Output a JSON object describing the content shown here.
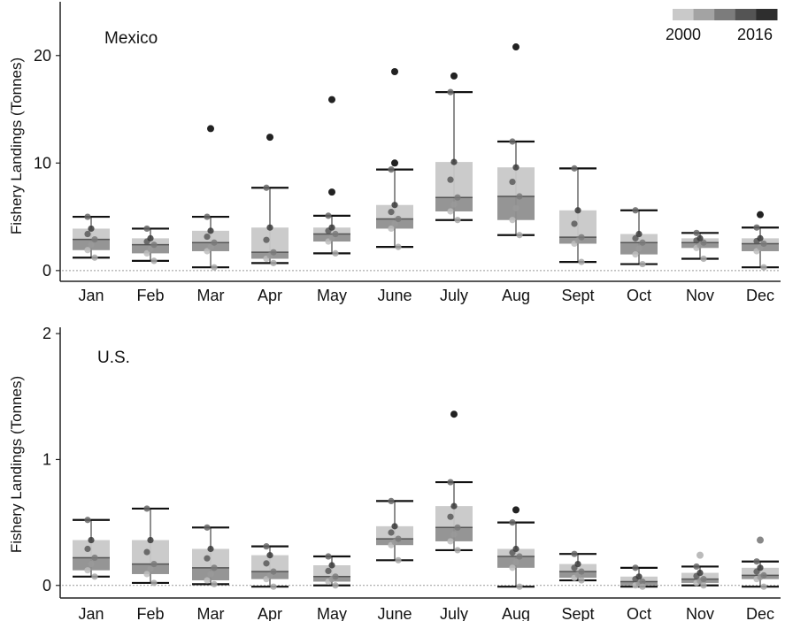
{
  "legend": {
    "start_label": "2000",
    "end_label": "2016",
    "colors": [
      "#c9c9c9",
      "#a3a3a3",
      "#7c7c7c",
      "#545454",
      "#2e2e2e"
    ]
  },
  "chart_data": [
    {
      "type": "box",
      "panel_label": "Mexico",
      "ylabel": "Fishery Landings (Tonnes)",
      "ylim": [
        -1,
        25
      ],
      "yticks": [
        0,
        10,
        20
      ],
      "categories": [
        "Jan",
        "Feb",
        "Mar",
        "Apr",
        "May",
        "June",
        "July",
        "Aug",
        "Sept",
        "Oct",
        "Nov",
        "Dec"
      ],
      "boxes": [
        {
          "whisker_low": 1.2,
          "q1": 1.9,
          "median": 2.9,
          "q3": 3.9,
          "whisker_high": 5.0,
          "upper": 3.9,
          "lower": 1.9
        },
        {
          "whisker_low": 0.9,
          "q1": 1.6,
          "median": 2.4,
          "q3": 3.0,
          "whisker_high": 3.9,
          "upper": 3.0,
          "lower": 1.6
        },
        {
          "whisker_low": 0.3,
          "q1": 1.8,
          "median": 2.6,
          "q3": 3.7,
          "whisker_high": 5.0,
          "upper": 3.7,
          "lower": 1.8
        },
        {
          "whisker_low": 0.7,
          "q1": 1.1,
          "median": 1.7,
          "q3": 4.0,
          "whisker_high": 7.7,
          "upper": 4.0,
          "lower": 1.1
        },
        {
          "whisker_low": 1.6,
          "q1": 2.7,
          "median": 3.4,
          "q3": 4.0,
          "whisker_high": 5.1,
          "upper": 4.0,
          "lower": 2.7
        },
        {
          "whisker_low": 2.2,
          "q1": 3.9,
          "median": 4.8,
          "q3": 6.1,
          "whisker_high": 9.4,
          "upper": 6.1,
          "lower": 3.9
        },
        {
          "whisker_low": 4.7,
          "q1": 5.5,
          "median": 6.8,
          "q3": 10.1,
          "whisker_high": 16.6,
          "upper": 10.1,
          "lower": 5.5
        },
        {
          "whisker_low": 3.3,
          "q1": 4.7,
          "median": 6.9,
          "q3": 9.6,
          "whisker_high": 12.0,
          "upper": 9.6,
          "lower": 4.7
        },
        {
          "whisker_low": 0.8,
          "q1": 2.5,
          "median": 3.1,
          "q3": 5.6,
          "whisker_high": 9.5,
          "upper": 5.6,
          "lower": 2.5
        },
        {
          "whisker_low": 0.6,
          "q1": 1.5,
          "median": 2.6,
          "q3": 3.4,
          "whisker_high": 5.6,
          "upper": 3.4,
          "lower": 1.5
        },
        {
          "whisker_low": 1.1,
          "q1": 2.1,
          "median": 2.6,
          "q3": 3.0,
          "whisker_high": 3.5,
          "upper": 3.0,
          "lower": 2.1
        },
        {
          "whisker_low": 0.3,
          "q1": 1.8,
          "median": 2.5,
          "q3": 3.0,
          "whisker_high": 4.0,
          "upper": 3.0,
          "lower": 1.8
        }
      ],
      "outliers": [
        {
          "month": "Mar",
          "value": 13.2
        },
        {
          "month": "Apr",
          "value": 12.4
        },
        {
          "month": "May",
          "value": 15.9
        },
        {
          "month": "May",
          "value": 7.3
        },
        {
          "month": "June",
          "value": 18.5
        },
        {
          "month": "June",
          "value": 10.0
        },
        {
          "month": "July",
          "value": 18.1
        },
        {
          "month": "Aug",
          "value": 20.8
        },
        {
          "month": "Dec",
          "value": 5.2
        }
      ]
    },
    {
      "type": "box",
      "panel_label": "U.S.",
      "ylabel": "Fishery Landings (Tonnes)",
      "ylim": [
        -0.1,
        2.05
      ],
      "yticks": [
        0,
        1,
        2
      ],
      "categories": [
        "Jan",
        "Feb",
        "Mar",
        "Apr",
        "May",
        "June",
        "July",
        "Aug",
        "Sept",
        "Oct",
        "Nov",
        "Dec"
      ],
      "boxes": [
        {
          "whisker_low": 0.07,
          "q1": 0.12,
          "median": 0.22,
          "q3": 0.36,
          "whisker_high": 0.52
        },
        {
          "whisker_low": 0.02,
          "q1": 0.09,
          "median": 0.17,
          "q3": 0.36,
          "whisker_high": 0.61
        },
        {
          "whisker_low": 0.01,
          "q1": 0.04,
          "median": 0.14,
          "q3": 0.29,
          "whisker_high": 0.46
        },
        {
          "whisker_low": -0.01,
          "q1": 0.05,
          "median": 0.11,
          "q3": 0.24,
          "whisker_high": 0.31
        },
        {
          "whisker_low": 0.0,
          "q1": 0.03,
          "median": 0.07,
          "q3": 0.16,
          "whisker_high": 0.23
        },
        {
          "whisker_low": 0.2,
          "q1": 0.32,
          "median": 0.37,
          "q3": 0.47,
          "whisker_high": 0.67
        },
        {
          "whisker_low": 0.28,
          "q1": 0.35,
          "median": 0.46,
          "q3": 0.63,
          "whisker_high": 0.82
        },
        {
          "whisker_low": -0.01,
          "q1": 0.14,
          "median": 0.23,
          "q3": 0.29,
          "whisker_high": 0.5
        },
        {
          "whisker_low": 0.04,
          "q1": 0.06,
          "median": 0.11,
          "q3": 0.17,
          "whisker_high": 0.25
        },
        {
          "whisker_low": -0.01,
          "q1": 0.0,
          "median": 0.03,
          "q3": 0.07,
          "whisker_high": 0.14
        },
        {
          "whisker_low": 0.0,
          "q1": 0.02,
          "median": 0.05,
          "q3": 0.1,
          "whisker_high": 0.15
        },
        {
          "whisker_low": -0.01,
          "q1": 0.05,
          "median": 0.08,
          "q3": 0.14,
          "whisker_high": 0.19
        }
      ],
      "outliers": [
        {
          "month": "July",
          "value": 1.36
        },
        {
          "month": "Aug",
          "value": 0.6
        },
        {
          "month": "Nov",
          "value": 0.24
        },
        {
          "month": "Dec",
          "value": 0.36
        }
      ]
    }
  ]
}
